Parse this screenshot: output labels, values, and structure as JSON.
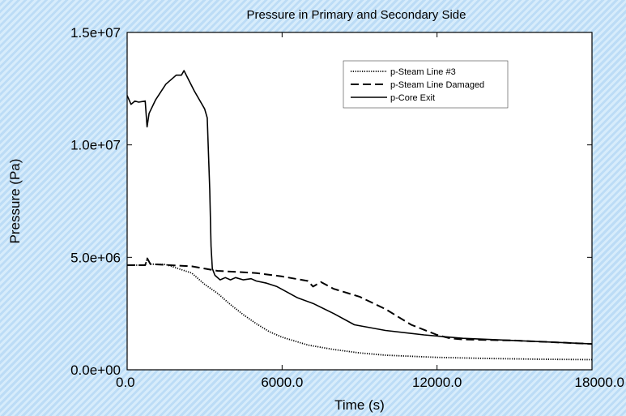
{
  "chart_data": {
    "type": "line",
    "title": "Pressure in Primary and Secondary Side",
    "xlabel": "Time (s)",
    "ylabel": "Pressure (Pa)",
    "xlim": [
      0,
      18000
    ],
    "ylim": [
      0,
      15000000
    ],
    "x_ticks": [
      {
        "value": 0,
        "label": "0.0"
      },
      {
        "value": 6000,
        "label": "6000.0"
      },
      {
        "value": 12000,
        "label": "12000.0"
      },
      {
        "value": 18000,
        "label": "18000.0"
      }
    ],
    "y_ticks": [
      {
        "value": 0,
        "label": "0.0e+00"
      },
      {
        "value": 5000000,
        "label": "5.0e+06"
      },
      {
        "value": 10000000,
        "label": "1.0e+07"
      },
      {
        "value": 15000000,
        "label": "1.5e+07"
      }
    ],
    "grid": false,
    "legend_position": "top-right",
    "series": [
      {
        "name": "p-Steam Line #3",
        "style": "dotted",
        "x": [
          0,
          700,
          780,
          900,
          1500,
          2500,
          3000,
          3500,
          4000,
          4500,
          5000,
          5500,
          6000,
          7000,
          8000,
          9000,
          10000,
          12000,
          14000,
          16000,
          18000
        ],
        "y": [
          4650000,
          4650000,
          4950000,
          4700000,
          4680000,
          4300000,
          3800000,
          3400000,
          2900000,
          2450000,
          2050000,
          1700000,
          1450000,
          1100000,
          900000,
          750000,
          650000,
          550000,
          500000,
          470000,
          450000
        ]
      },
      {
        "name": "p-Steam Line Damaged",
        "style": "dashed",
        "x": [
          0,
          700,
          780,
          900,
          2500,
          3500,
          5000,
          6000,
          7000,
          7200,
          7500,
          8000,
          9000,
          10000,
          11000,
          12000,
          12500,
          13000,
          15000,
          18000
        ],
        "y": [
          4650000,
          4650000,
          4950000,
          4700000,
          4600000,
          4400000,
          4300000,
          4150000,
          3950000,
          3700000,
          3900000,
          3600000,
          3250000,
          2700000,
          2000000,
          1550000,
          1400000,
          1350000,
          1300000,
          1150000
        ]
      },
      {
        "name": "p-Core Exit",
        "style": "solid",
        "x": [
          0,
          150,
          300,
          450,
          700,
          770,
          850,
          1100,
          1500,
          1900,
          2100,
          2200,
          2600,
          3000,
          3100,
          3200,
          3250,
          3300,
          3400,
          3600,
          3800,
          4000,
          4200,
          4500,
          4800,
          5000,
          5400,
          5800,
          6200,
          6600,
          7200,
          8000,
          8800,
          10000,
          11500,
          13000,
          15000,
          18000
        ],
        "y": [
          12200000,
          11800000,
          11950000,
          11900000,
          11950000,
          10800000,
          11400000,
          12000000,
          12700000,
          13100000,
          13100000,
          13300000,
          12400000,
          11600000,
          11200000,
          8000000,
          5500000,
          4500000,
          4200000,
          4000000,
          4100000,
          4000000,
          4100000,
          4000000,
          4050000,
          3950000,
          3850000,
          3700000,
          3450000,
          3200000,
          2950000,
          2500000,
          2000000,
          1750000,
          1550000,
          1400000,
          1300000,
          1150000
        ]
      }
    ]
  }
}
